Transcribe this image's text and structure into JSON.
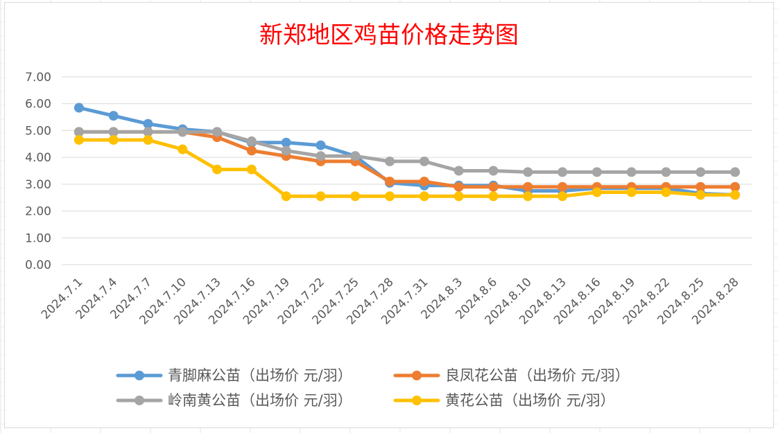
{
  "chart_data": {
    "type": "line",
    "title": "新郑地区鸡苗价格走势图",
    "ylim": [
      0,
      7
    ],
    "yticks": [
      "0.00",
      "1.00",
      "2.00",
      "3.00",
      "4.00",
      "5.00",
      "6.00",
      "7.00"
    ],
    "categories": [
      "2024.7.1",
      "2024.7.4",
      "2024.7.7",
      "2024.7.10",
      "2024.7.13",
      "2024.7.16",
      "2024.7.19",
      "2024.7.22",
      "2024.7.25",
      "2024.7.28",
      "2024.7.31",
      "2024.8.3",
      "2024.8.6",
      "2024.8.10",
      "2024.8.13",
      "2024.8.16",
      "2024.8.19",
      "2024.8.22",
      "2024.8.25",
      "2024.8.28"
    ],
    "grid": true,
    "legend_position": "bottom",
    "series": [
      {
        "name": "青脚麻公苗（出场价 元/羽）",
        "color": "#5b9bd5",
        "values": [
          5.85,
          5.55,
          5.25,
          5.05,
          4.95,
          4.55,
          4.55,
          4.45,
          4.05,
          3.05,
          2.95,
          2.95,
          2.95,
          2.75,
          2.75,
          2.85,
          2.85,
          2.85,
          2.65,
          2.6
        ]
      },
      {
        "name": "良凤花公苗（出场价 元/羽）",
        "color": "#ed7d31",
        "values": [
          4.95,
          4.95,
          4.95,
          4.95,
          4.75,
          4.25,
          4.05,
          3.85,
          3.85,
          3.1,
          3.1,
          2.9,
          2.9,
          2.9,
          2.9,
          2.9,
          2.9,
          2.9,
          2.9,
          2.9
        ]
      },
      {
        "name": "岭南黄公苗（出场价 元/羽）",
        "color": "#a5a5a5",
        "values": [
          4.95,
          4.95,
          4.95,
          4.95,
          4.95,
          4.6,
          4.25,
          4.05,
          4.05,
          3.85,
          3.85,
          3.5,
          3.5,
          3.45,
          3.45,
          3.45,
          3.45,
          3.45,
          3.45,
          3.45
        ]
      },
      {
        "name": "黄花公苗（出场价 元/羽）",
        "color": "#ffc000",
        "values": [
          4.65,
          4.65,
          4.65,
          4.3,
          3.55,
          3.55,
          2.55,
          2.55,
          2.55,
          2.55,
          2.55,
          2.55,
          2.55,
          2.55,
          2.55,
          2.7,
          2.7,
          2.7,
          2.6,
          2.6
        ]
      }
    ]
  }
}
